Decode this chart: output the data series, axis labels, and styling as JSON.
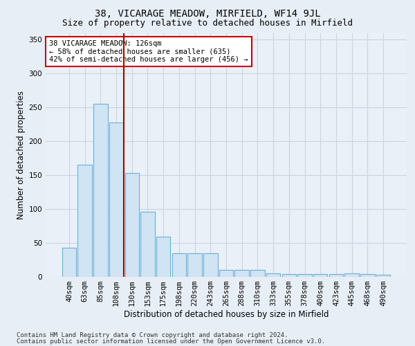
{
  "title1": "38, VICARAGE MEADOW, MIRFIELD, WF14 9JL",
  "title2": "Size of property relative to detached houses in Mirfield",
  "xlabel": "Distribution of detached houses by size in Mirfield",
  "ylabel": "Number of detached properties",
  "categories": [
    "40sqm",
    "63sqm",
    "85sqm",
    "108sqm",
    "130sqm",
    "153sqm",
    "175sqm",
    "198sqm",
    "220sqm",
    "243sqm",
    "265sqm",
    "288sqm",
    "310sqm",
    "333sqm",
    "355sqm",
    "378sqm",
    "400sqm",
    "423sqm",
    "445sqm",
    "468sqm",
    "490sqm"
  ],
  "values": [
    43,
    165,
    255,
    228,
    153,
    96,
    59,
    35,
    35,
    35,
    10,
    10,
    10,
    5,
    4,
    4,
    4,
    4,
    5,
    4,
    3
  ],
  "bar_color": "#d0e4f3",
  "bar_edge_color": "#6aaed6",
  "vline_x": 3.5,
  "vline_color": "#aa0000",
  "annotation_text": "38 VICARAGE MEADOW: 126sqm\n← 58% of detached houses are smaller (635)\n42% of semi-detached houses are larger (456) →",
  "annotation_box_color": "#ffffff",
  "annotation_box_edge": "#cc0000",
  "ylim": [
    0,
    360
  ],
  "yticks": [
    0,
    50,
    100,
    150,
    200,
    250,
    300,
    350
  ],
  "footer1": "Contains HM Land Registry data © Crown copyright and database right 2024.",
  "footer2": "Contains public sector information licensed under the Open Government Licence v3.0.",
  "bg_color": "#e8eef5",
  "plot_bg_color": "#eaf0f8",
  "grid_color": "#c8d4e0",
  "title1_fontsize": 10,
  "title2_fontsize": 9,
  "xlabel_fontsize": 8.5,
  "ylabel_fontsize": 8.5,
  "tick_fontsize": 7.5,
  "footer_fontsize": 6.5,
  "annot_fontsize": 7.5
}
